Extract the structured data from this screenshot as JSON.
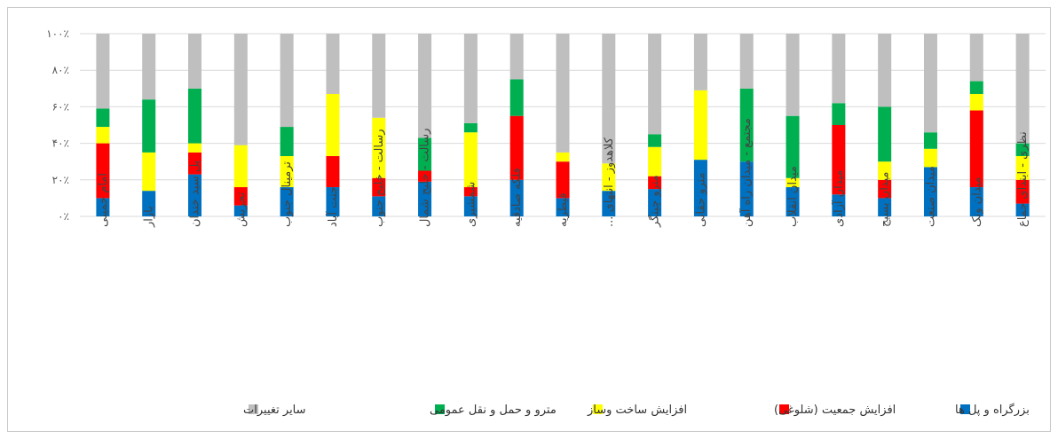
{
  "chart_data": {
    "type": "bar",
    "stacked": true,
    "percent": true,
    "ylim": [
      0,
      100
    ],
    "yticks": [
      "۰٪",
      "۲۰٪",
      "۴۰٪",
      "۶۰٪",
      "۸۰٪",
      "۱۰۰٪"
    ],
    "grid": true,
    "legend_position": "bottom",
    "categories": [
      "امام خمینی",
      "بازار",
      "پل سید خندان",
      "تجریش",
      "ترمینال جنوب",
      "جنت آباد",
      "رسالت - خلیج جنوب",
      "رسالت - خلیج شمال",
      "شمشیری",
      "فلکه صادقیه",
      "قیطریه",
      "کلاهدوز - انتهای ...",
      "مترو چیتگر",
      "مترو حقانی",
      "مجتمع - میدان راه آهن",
      "میدان انقلاب",
      "میدان آزادی",
      "میدان بسیج",
      "میدان صنعت",
      "میدان ونک",
      "نظری - ابتدای جماع"
    ],
    "series": [
      {
        "name": "بزرگراه و پل ها",
        "color": "#0070c0",
        "values": [
          10,
          14,
          23,
          6,
          16,
          16,
          11,
          19,
          11,
          20,
          10,
          14,
          15,
          31,
          30,
          16,
          12,
          10,
          27,
          16,
          7
        ]
      },
      {
        "name": "افزایش جمعیت (شلوغی)",
        "color": "#ff0000",
        "values": [
          30,
          0,
          12,
          10,
          0,
          17,
          10,
          6,
          5,
          35,
          20,
          0,
          7,
          0,
          0,
          0,
          38,
          10,
          0,
          42,
          13
        ]
      },
      {
        "name": "افزایش ساخت وساز",
        "color": "#ffff00",
        "values": [
          9,
          21,
          5,
          23,
          17,
          34,
          33,
          0,
          30,
          0,
          5,
          15,
          16,
          38,
          0,
          5,
          0,
          10,
          10,
          9,
          13
        ]
      },
      {
        "name": "مترو و حمل و نقل عمومی",
        "color": "#00b050",
        "values": [
          10,
          29,
          30,
          0,
          16,
          0,
          0,
          18,
          5,
          20,
          0,
          0,
          7,
          0,
          40,
          34,
          12,
          30,
          9,
          7,
          7
        ]
      },
      {
        "name": "سایر تغییرات",
        "color": "#bfbfbf",
        "values": [
          41,
          36,
          30,
          61,
          51,
          33,
          46,
          57,
          49,
          25,
          65,
          71,
          55,
          31,
          30,
          45,
          38,
          40,
          54,
          26,
          60
        ]
      }
    ]
  }
}
